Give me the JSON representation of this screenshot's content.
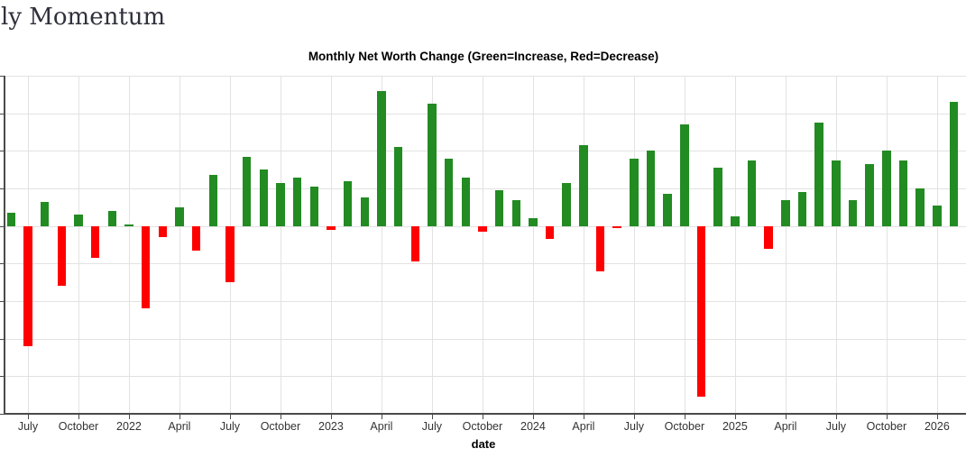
{
  "page": {
    "heading": "ly Momentum"
  },
  "chart": {
    "title": "Monthly Net Worth Change (Green=Increase, Red=Decrease)",
    "xlabel": "date"
  },
  "colors": {
    "increase": "#228B22",
    "decrease": "#FF0000",
    "gridline": "#e2e2e2",
    "axis_line": "#4a4a4a",
    "tick_label": "#333333",
    "heading_text": "#30303d"
  },
  "chart_data": {
    "type": "bar",
    "title": "Monthly Net Worth Change (Green=Increase, Red=Decrease)",
    "xlabel": "date",
    "ylabel": "",
    "legend": "none",
    "grid": true,
    "y_axis_tick_labels_visible": false,
    "ylim": [
      -5,
      4
    ],
    "y_grid_interval": 1,
    "x_tick_labels": [
      "July",
      "October",
      "2022",
      "April",
      "July",
      "October",
      "2023",
      "April",
      "July",
      "October",
      "2024",
      "April",
      "July",
      "October",
      "2025",
      "April",
      "July",
      "October",
      "2026"
    ],
    "x_tick_month_indices": [
      1,
      4,
      7,
      10,
      13,
      16,
      19,
      22,
      25,
      28,
      31,
      34,
      37,
      40,
      43,
      46,
      49,
      52,
      55
    ],
    "value_note": "values estimated in y-gridline units; axis number labels are cropped off-screen",
    "bars": [
      {
        "month": "2021-06",
        "value": 0.35
      },
      {
        "month": "2021-07",
        "value": -3.2
      },
      {
        "month": "2021-08",
        "value": 0.65
      },
      {
        "month": "2021-09",
        "value": -1.6
      },
      {
        "month": "2021-10",
        "value": 0.3
      },
      {
        "month": "2021-11",
        "value": -0.85
      },
      {
        "month": "2021-12",
        "value": 0.4
      },
      {
        "month": "2022-01",
        "value": 0.03
      },
      {
        "month": "2022-02",
        "value": -2.2
      },
      {
        "month": "2022-03",
        "value": -0.3
      },
      {
        "month": "2022-04",
        "value": 0.5
      },
      {
        "month": "2022-05",
        "value": -0.65
      },
      {
        "month": "2022-06",
        "value": 1.35
      },
      {
        "month": "2022-07",
        "value": -1.5
      },
      {
        "month": "2022-08",
        "value": 1.85
      },
      {
        "month": "2022-09",
        "value": 1.5
      },
      {
        "month": "2022-10",
        "value": 1.15
      },
      {
        "month": "2022-11",
        "value": 1.3
      },
      {
        "month": "2022-12",
        "value": 1.05
      },
      {
        "month": "2023-01",
        "value": -0.1
      },
      {
        "month": "2023-02",
        "value": 1.2
      },
      {
        "month": "2023-03",
        "value": 0.75
      },
      {
        "month": "2023-04",
        "value": 3.6
      },
      {
        "month": "2023-05",
        "value": 2.1
      },
      {
        "month": "2023-06",
        "value": -0.95
      },
      {
        "month": "2023-07",
        "value": 3.25
      },
      {
        "month": "2023-08",
        "value": 1.8
      },
      {
        "month": "2023-09",
        "value": 1.3
      },
      {
        "month": "2023-10",
        "value": -0.15
      },
      {
        "month": "2023-11",
        "value": 0.95
      },
      {
        "month": "2023-12",
        "value": 0.7
      },
      {
        "month": "2024-01",
        "value": 0.2
      },
      {
        "month": "2024-02",
        "value": -0.35
      },
      {
        "month": "2024-03",
        "value": 1.15
      },
      {
        "month": "2024-04",
        "value": 2.15
      },
      {
        "month": "2024-05",
        "value": -1.2
      },
      {
        "month": "2024-06",
        "value": -0.05
      },
      {
        "month": "2024-07",
        "value": 1.8
      },
      {
        "month": "2024-08",
        "value": 2.0
      },
      {
        "month": "2024-09",
        "value": 0.85
      },
      {
        "month": "2024-10",
        "value": 2.7
      },
      {
        "month": "2024-11",
        "value": -4.55
      },
      {
        "month": "2024-12",
        "value": 1.55
      },
      {
        "month": "2025-01",
        "value": 0.25
      },
      {
        "month": "2025-02",
        "value": 1.75
      },
      {
        "month": "2025-03",
        "value": -0.6
      },
      {
        "month": "2025-04",
        "value": 0.7
      },
      {
        "month": "2025-05",
        "value": 0.9
      },
      {
        "month": "2025-06",
        "value": 2.75
      },
      {
        "month": "2025-07",
        "value": 1.75
      },
      {
        "month": "2025-08",
        "value": 0.7
      },
      {
        "month": "2025-09",
        "value": 1.65
      },
      {
        "month": "2025-10",
        "value": 2.0
      },
      {
        "month": "2025-11",
        "value": 1.75
      },
      {
        "month": "2025-12",
        "value": 1.0
      },
      {
        "month": "2026-01",
        "value": 0.55
      },
      {
        "month": "2026-02",
        "value": 3.3
      }
    ]
  }
}
